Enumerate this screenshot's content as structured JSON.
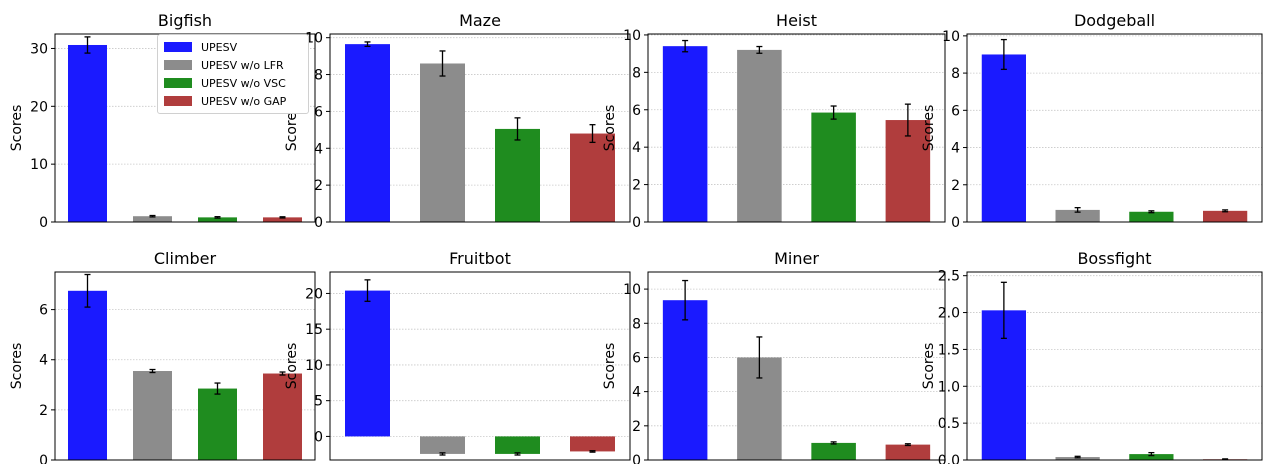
{
  "chart_data": [
    {
      "type": "bar",
      "title": "Bigfish",
      "ylabel": "Scores",
      "ylim": [
        0,
        32.5
      ],
      "yticks": [
        0,
        10,
        20,
        30
      ],
      "ytick_labels": [
        "0",
        "10",
        "20",
        "30"
      ],
      "series": [
        {
          "name": "UPESV",
          "value": 30.6,
          "error": 1.4
        },
        {
          "name": "UPESV w/o LFR",
          "value": 1.0,
          "error": 0.12
        },
        {
          "name": "UPESV w/o VSC",
          "value": 0.8,
          "error": 0.12
        },
        {
          "name": "UPESV w/o GAP",
          "value": 0.8,
          "error": 0.1
        }
      ],
      "grid": "y",
      "legend": "top-right"
    },
    {
      "type": "bar",
      "title": "Maze",
      "ylabel": "Scores",
      "ylim": [
        0,
        10.2
      ],
      "yticks": [
        0,
        2,
        4,
        6,
        8,
        10
      ],
      "ytick_labels": [
        "0",
        "2",
        "4",
        "6",
        "8",
        "10"
      ],
      "series": [
        {
          "name": "UPESV",
          "value": 9.65,
          "error": 0.12
        },
        {
          "name": "UPESV w/o LFR",
          "value": 8.6,
          "error": 0.68
        },
        {
          "name": "UPESV w/o VSC",
          "value": 5.05,
          "error": 0.6
        },
        {
          "name": "UPESV w/o GAP",
          "value": 4.8,
          "error": 0.48
        }
      ],
      "grid": "y"
    },
    {
      "type": "bar",
      "title": "Heist",
      "ylabel": "Scores",
      "ylim": [
        0,
        10.05
      ],
      "yticks": [
        0,
        2,
        4,
        6,
        8,
        10
      ],
      "ytick_labels": [
        "0",
        "2",
        "4",
        "6",
        "8",
        "10"
      ],
      "series": [
        {
          "name": "UPESV",
          "value": 9.4,
          "error": 0.3
        },
        {
          "name": "UPESV w/o LFR",
          "value": 9.2,
          "error": 0.18
        },
        {
          "name": "UPESV w/o VSC",
          "value": 5.85,
          "error": 0.35
        },
        {
          "name": "UPESV w/o GAP",
          "value": 5.45,
          "error": 0.85
        }
      ],
      "grid": "y"
    },
    {
      "type": "bar",
      "title": "Dodgeball",
      "ylabel": "Scores",
      "ylim": [
        0,
        10.1
      ],
      "yticks": [
        0,
        2,
        4,
        6,
        8,
        10
      ],
      "ytick_labels": [
        "0",
        "2",
        "4",
        "6",
        "8",
        "10"
      ],
      "series": [
        {
          "name": "UPESV",
          "value": 9.0,
          "error": 0.8
        },
        {
          "name": "UPESV w/o LFR",
          "value": 0.65,
          "error": 0.12
        },
        {
          "name": "UPESV w/o VSC",
          "value": 0.55,
          "error": 0.05
        },
        {
          "name": "UPESV w/o GAP",
          "value": 0.6,
          "error": 0.05
        }
      ],
      "grid": "y"
    },
    {
      "type": "bar",
      "title": "Climber",
      "ylabel": "Scores",
      "ylim": [
        0,
        7.5
      ],
      "yticks": [
        0,
        2,
        4,
        6
      ],
      "ytick_labels": [
        "0",
        "2",
        "4",
        "6"
      ],
      "series": [
        {
          "name": "UPESV",
          "value": 6.75,
          "error": 0.65
        },
        {
          "name": "UPESV w/o LFR",
          "value": 3.55,
          "error": 0.06
        },
        {
          "name": "UPESV w/o VSC",
          "value": 2.85,
          "error": 0.22
        },
        {
          "name": "UPESV w/o GAP",
          "value": 3.45,
          "error": 0.06
        }
      ],
      "grid": "y"
    },
    {
      "type": "bar",
      "title": "Fruitbot",
      "ylabel": "Scores",
      "ylim": [
        -3.3,
        23.0
      ],
      "yticks": [
        0,
        5,
        10,
        15,
        20
      ],
      "ytick_labels": [
        "0",
        "5",
        "10",
        "15",
        "20"
      ],
      "series": [
        {
          "name": "UPESV",
          "value": 20.4,
          "error": 1.5
        },
        {
          "name": "UPESV w/o LFR",
          "value": -2.45,
          "error": 0.15
        },
        {
          "name": "UPESV w/o VSC",
          "value": -2.45,
          "error": 0.15
        },
        {
          "name": "UPESV w/o GAP",
          "value": -2.1,
          "error": 0.1
        }
      ],
      "grid": "y"
    },
    {
      "type": "bar",
      "title": "Miner",
      "ylabel": "Scores",
      "ylim": [
        0,
        11.0
      ],
      "yticks": [
        0,
        2,
        4,
        6,
        8,
        10
      ],
      "ytick_labels": [
        "0",
        "2",
        "4",
        "6",
        "8",
        "10"
      ],
      "series": [
        {
          "name": "UPESV",
          "value": 9.35,
          "error": 1.15
        },
        {
          "name": "UPESV w/o LFR",
          "value": 6.0,
          "error": 1.2
        },
        {
          "name": "UPESV w/o VSC",
          "value": 1.0,
          "error": 0.06
        },
        {
          "name": "UPESV w/o GAP",
          "value": 0.9,
          "error": 0.05
        }
      ],
      "grid": "y"
    },
    {
      "type": "bar",
      "title": "Bossfight",
      "ylabel": "Scores",
      "ylim": [
        0,
        2.55
      ],
      "yticks": [
        0,
        0.5,
        1.0,
        1.5,
        2.0,
        2.5
      ],
      "ytick_labels": [
        "0.0",
        "0.5",
        "1.0",
        "1.5",
        "2.0",
        "2.5"
      ],
      "series": [
        {
          "name": "UPESV",
          "value": 2.03,
          "error": 0.38
        },
        {
          "name": "UPESV w/o LFR",
          "value": 0.04,
          "error": 0.01
        },
        {
          "name": "UPESV w/o VSC",
          "value": 0.08,
          "error": 0.02
        },
        {
          "name": "UPESV w/o GAP",
          "value": 0.01,
          "error": 0.005
        }
      ],
      "grid": "y"
    }
  ],
  "legend": {
    "items": [
      {
        "label": "UPESV",
        "color": "#1a1aff"
      },
      {
        "label": "UPESV w/o LFR",
        "color": "#8c8c8c"
      },
      {
        "label": "UPESV w/o VSC",
        "color": "#1f8c1f"
      },
      {
        "label": "UPESV w/o GAP",
        "color": "#b03d3d"
      }
    ]
  },
  "colors": {
    "bars": [
      "#1a1aff",
      "#8c8c8c",
      "#1f8c1f",
      "#b03d3d"
    ],
    "grid": "#c8c8c8",
    "errorbar": "#000000"
  }
}
